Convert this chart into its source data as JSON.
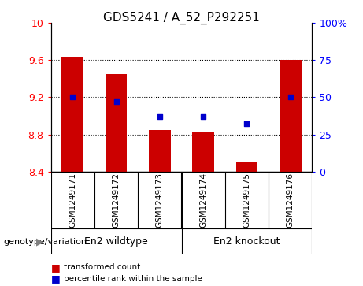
{
  "title": "GDS5241 / A_52_P292251",
  "samples": [
    "GSM1249171",
    "GSM1249172",
    "GSM1249173",
    "GSM1249174",
    "GSM1249175",
    "GSM1249176"
  ],
  "bar_values": [
    9.64,
    9.45,
    8.85,
    8.83,
    8.5,
    9.6
  ],
  "bar_baseline": 8.4,
  "percentile_values": [
    50,
    47,
    37,
    37,
    32,
    50
  ],
  "bar_color": "#cc0000",
  "dot_color": "#0000cc",
  "ylim_left": [
    8.4,
    10.0
  ],
  "ylim_right": [
    0,
    100
  ],
  "yticks_left": [
    8.4,
    8.8,
    9.2,
    9.6,
    10.0
  ],
  "ytick_labels_left": [
    "8.4",
    "8.8",
    "9.2",
    "9.6",
    "10"
  ],
  "yticks_right": [
    0,
    25,
    50,
    75,
    100
  ],
  "ytick_labels_right": [
    "0",
    "25",
    "50",
    "75",
    "100%"
  ],
  "groups": [
    {
      "label": "En2 wildtype",
      "indices": [
        0,
        1,
        2
      ]
    },
    {
      "label": "En2 knockout",
      "indices": [
        3,
        4,
        5
      ]
    }
  ],
  "group_label_prefix": "genotype/variation",
  "legend_bar_label": "transformed count",
  "legend_dot_label": "percentile rank within the sample",
  "plot_bg": "#ffffff",
  "label_area_bg": "#c8c8c8",
  "group_area_bg": "#90ee90",
  "bar_width": 0.5,
  "title_fontsize": 11,
  "tick_fontsize": 9,
  "label_fontsize": 8
}
